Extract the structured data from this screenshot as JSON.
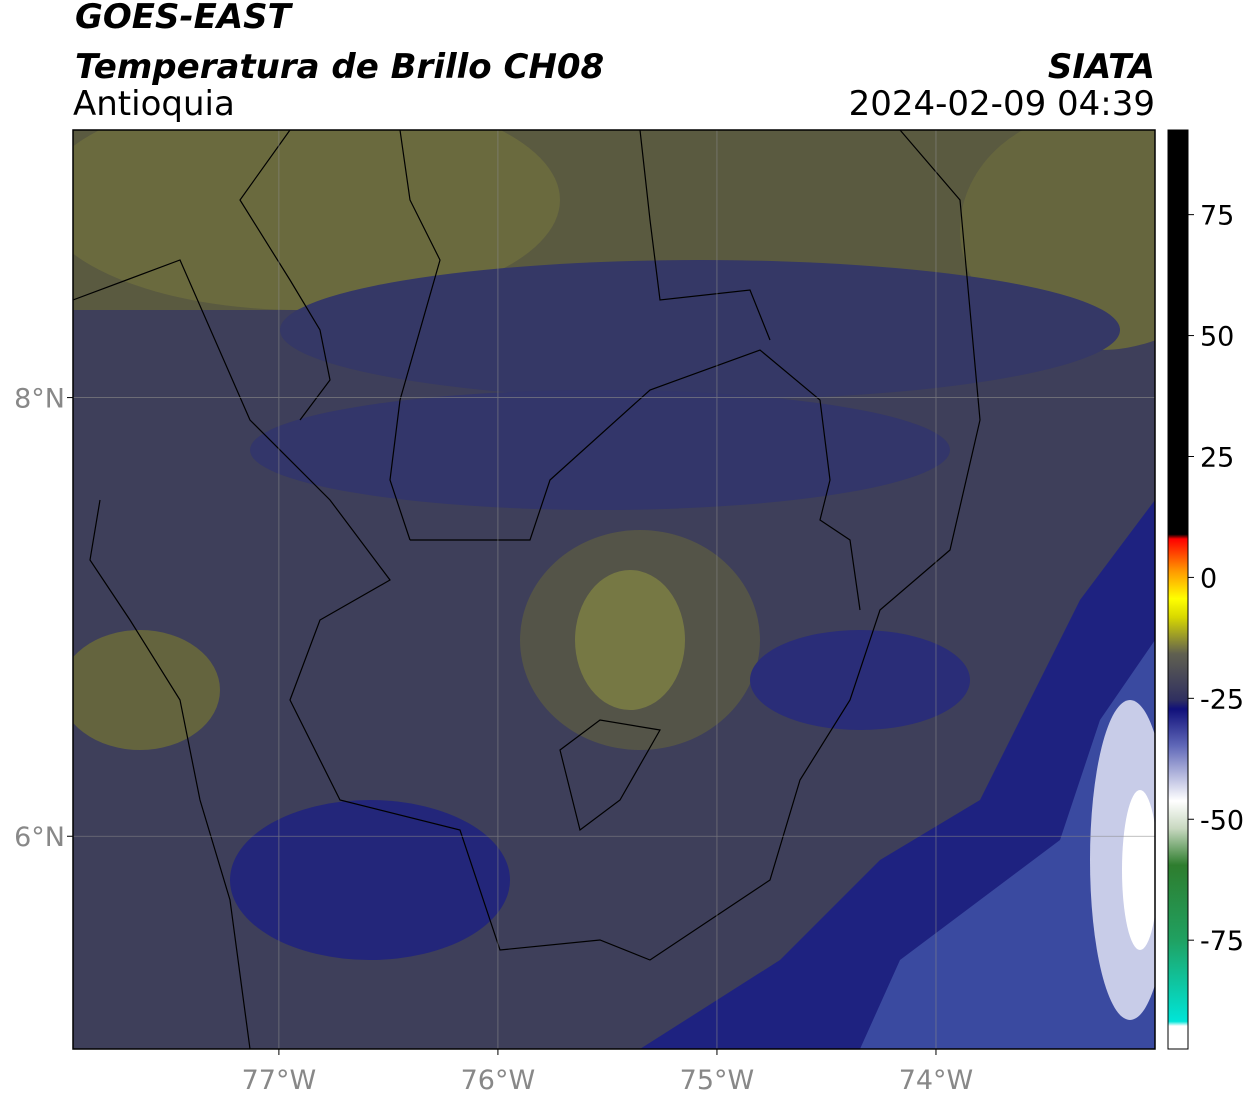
{
  "header": {
    "title": "GOES-EAST",
    "subtitle": "Temperatura de Brillo CH08",
    "region": "Antioquia",
    "brand": "SIATA",
    "datetime": "2024-02-09 04:39"
  },
  "map": {
    "xlim": [
      -77.94,
      -73.0
    ],
    "ylim": [
      5.03,
      9.22
    ],
    "xticks": [
      {
        "value": -77,
        "label": "77°W"
      },
      {
        "value": -76,
        "label": "76°W"
      },
      {
        "value": -75,
        "label": "75°W"
      },
      {
        "value": -74,
        "label": "74°W"
      }
    ],
    "yticks": [
      {
        "value": 8,
        "label": "8°N"
      },
      {
        "value": 6,
        "label": "6°N"
      }
    ]
  },
  "colorbar": {
    "lim": [
      -97.5,
      92.5
    ],
    "ticks": [
      75,
      50,
      25,
      0,
      -25,
      -50,
      -75
    ]
  }
}
